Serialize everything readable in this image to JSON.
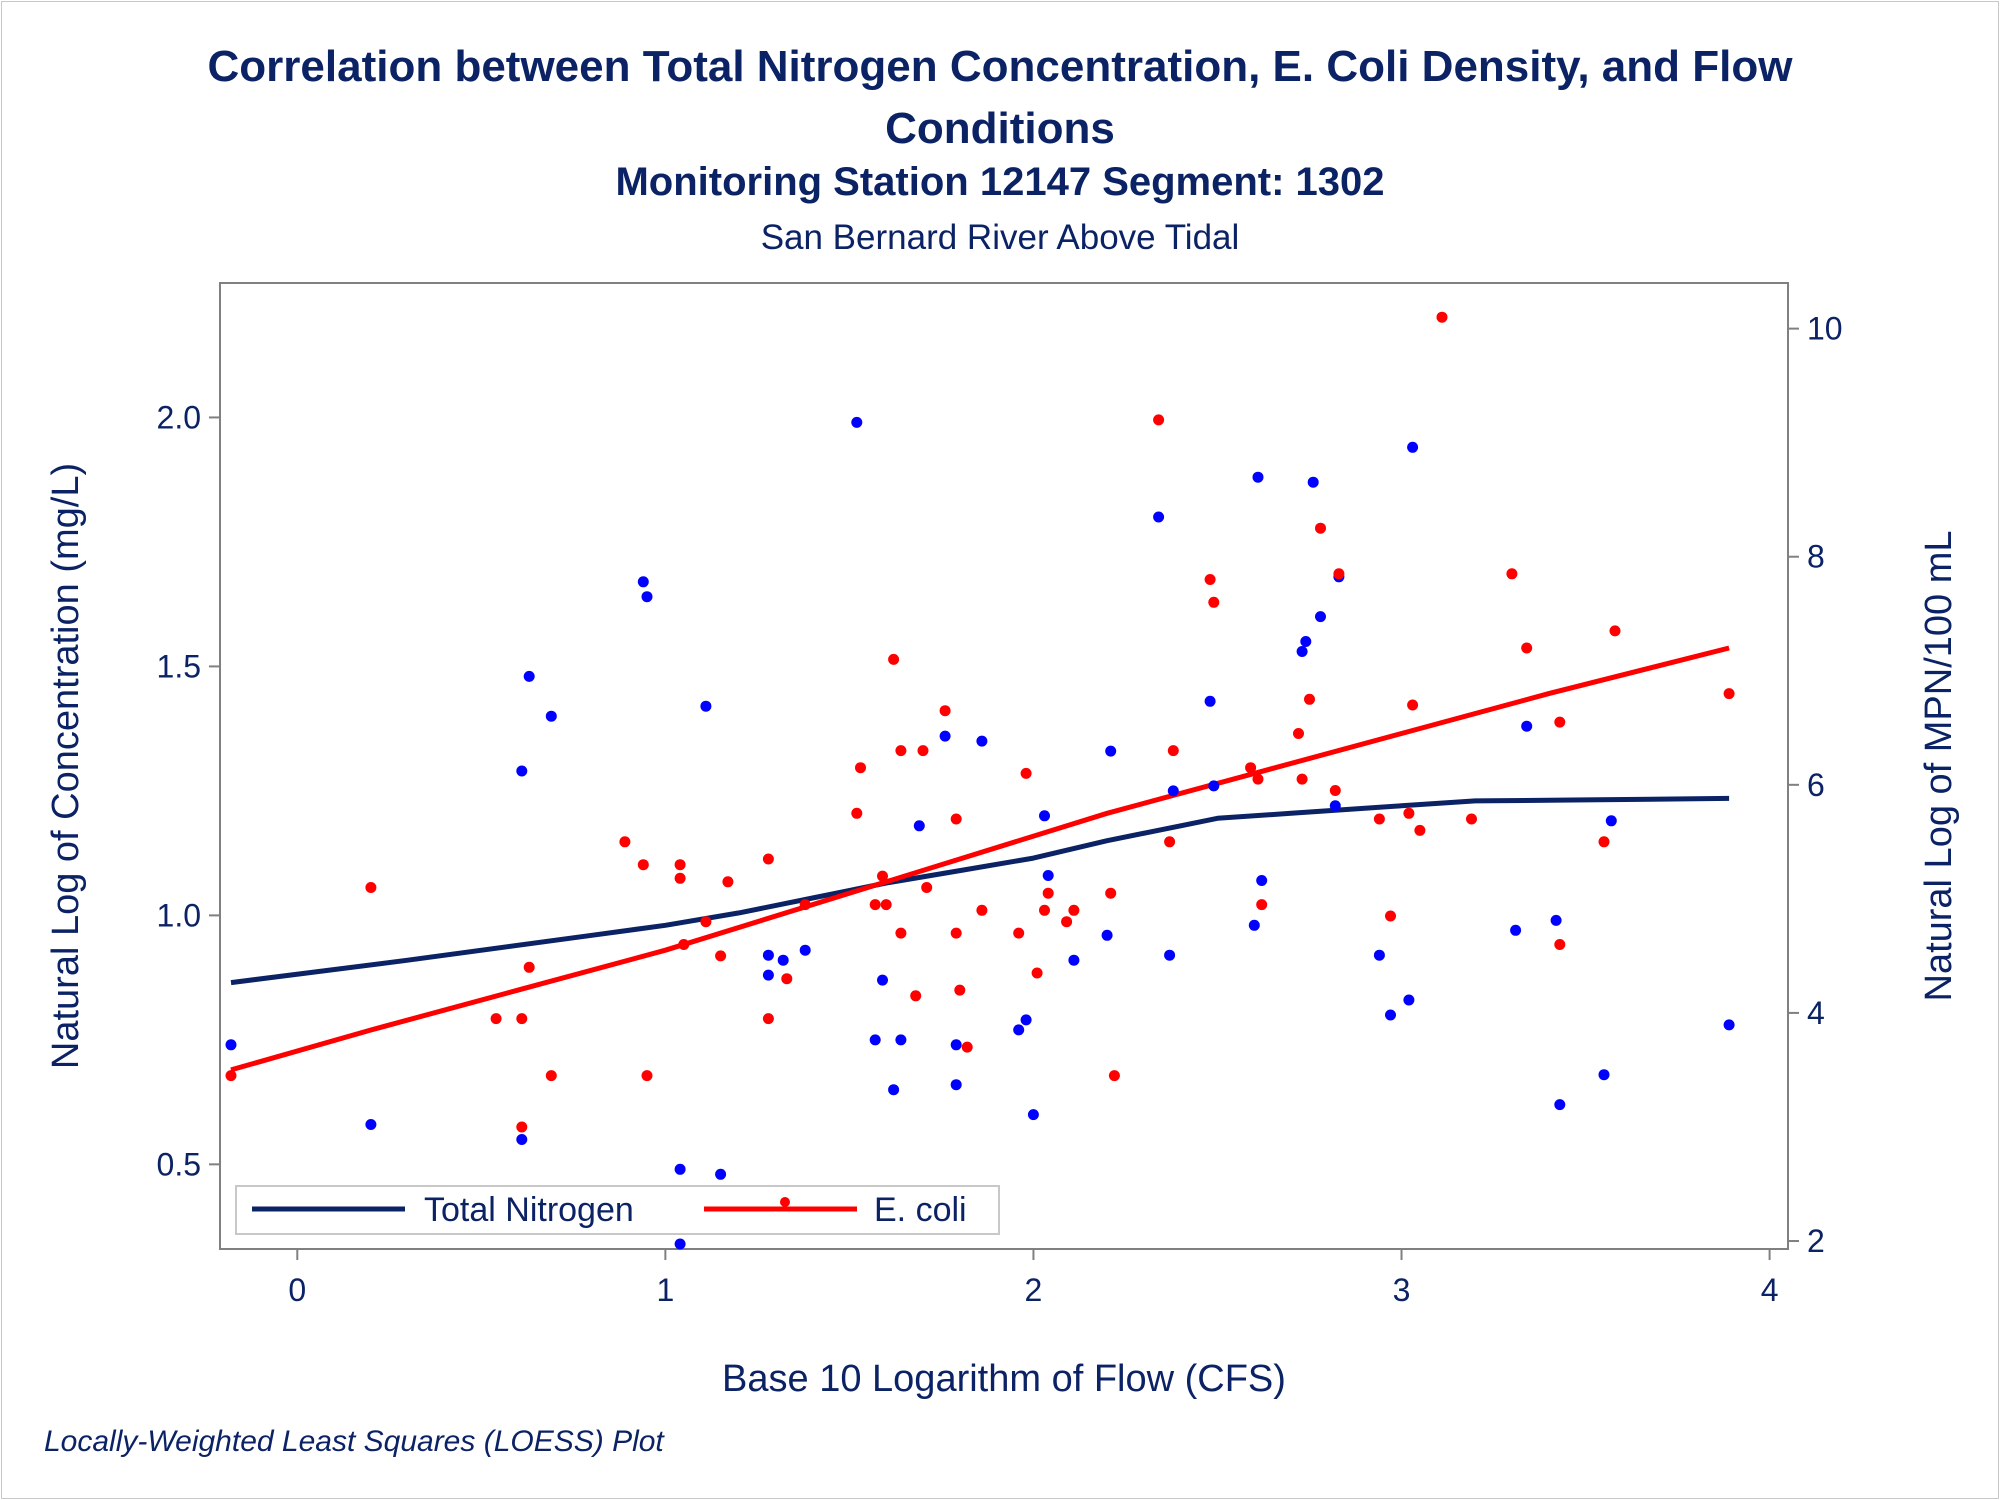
{
  "title_line1": "Correlation between Total Nitrogen Concentration, E. Coli Density, and Flow",
  "title_line2": "Conditions",
  "subtitle": "Monitoring Station 12147 Segment: 1302",
  "subtitle2": "San Bernard River Above Tidal",
  "footnote": "Locally-Weighted Least Squares (LOESS) Plot",
  "colors": {
    "nitrogen": "#0000ff",
    "nitrogen_line": "#0b2265",
    "ecoli": "#ff0000",
    "text": "#0b2265",
    "axis": "#808080"
  },
  "chart_data": {
    "type": "scatter",
    "xlabel": "Base 10 Logarithm of Flow (CFS)",
    "ylabel_left": "Natural Log of Concentration (mg/L)",
    "ylabel_right": "Natural Log of MPN/100 mL",
    "xlim": [
      -0.21,
      4.05
    ],
    "ylim_left": [
      0.33,
      2.27
    ],
    "ylim_right": [
      1.93,
      10.4
    ],
    "xticks": [
      0,
      1,
      2,
      3,
      4
    ],
    "yticks_left": [
      0.5,
      1.0,
      1.5,
      2.0
    ],
    "yticks_left_labels": [
      "0.5",
      "1.0",
      "1.5",
      "2.0"
    ],
    "yticks_right": [
      2,
      4,
      6,
      8,
      10
    ],
    "legend": {
      "position": "bottom-left",
      "entries": [
        "Total Nitrogen",
        "E. coli"
      ]
    },
    "series": [
      {
        "name": "Total Nitrogen",
        "axis": "left",
        "type": "scatter",
        "points": [
          [
            -0.18,
            0.74
          ],
          [
            0.2,
            0.58
          ],
          [
            0.61,
            1.29
          ],
          [
            0.61,
            0.55
          ],
          [
            0.63,
            1.48
          ],
          [
            0.69,
            1.4
          ],
          [
            0.94,
            1.67
          ],
          [
            0.95,
            1.64
          ],
          [
            1.04,
            0.49
          ],
          [
            1.04,
            0.34
          ],
          [
            1.11,
            1.42
          ],
          [
            1.15,
            0.48
          ],
          [
            1.28,
            0.92
          ],
          [
            1.28,
            0.88
          ],
          [
            1.32,
            0.91
          ],
          [
            1.38,
            0.93
          ],
          [
            1.52,
            1.99
          ],
          [
            1.57,
            0.75
          ],
          [
            1.59,
            0.87
          ],
          [
            1.62,
            0.65
          ],
          [
            1.64,
            0.75
          ],
          [
            1.69,
            1.18
          ],
          [
            1.76,
            1.36
          ],
          [
            1.79,
            0.66
          ],
          [
            1.79,
            0.74
          ],
          [
            1.86,
            1.35
          ],
          [
            1.96,
            0.77
          ],
          [
            1.98,
            0.79
          ],
          [
            2.0,
            0.6
          ],
          [
            2.03,
            1.2
          ],
          [
            2.04,
            1.08
          ],
          [
            2.11,
            0.91
          ],
          [
            2.2,
            0.96
          ],
          [
            2.21,
            1.33
          ],
          [
            2.34,
            1.8
          ],
          [
            2.37,
            0.92
          ],
          [
            2.38,
            1.25
          ],
          [
            2.48,
            1.43
          ],
          [
            2.49,
            1.26
          ],
          [
            2.6,
            0.98
          ],
          [
            2.61,
            1.88
          ],
          [
            2.62,
            1.07
          ],
          [
            2.73,
            1.53
          ],
          [
            2.74,
            1.55
          ],
          [
            2.76,
            1.87
          ],
          [
            2.78,
            1.6
          ],
          [
            2.82,
            1.22
          ],
          [
            2.83,
            1.68
          ],
          [
            2.94,
            0.92
          ],
          [
            2.97,
            0.8
          ],
          [
            3.02,
            0.83
          ],
          [
            3.03,
            1.94
          ],
          [
            3.31,
            0.97
          ],
          [
            3.34,
            1.38
          ],
          [
            3.42,
            0.99
          ],
          [
            3.43,
            0.62
          ],
          [
            3.55,
            0.68
          ],
          [
            3.57,
            1.19
          ],
          [
            3.89,
            0.78
          ]
        ]
      },
      {
        "name": "E. coli",
        "axis": "right",
        "type": "scatter",
        "points": [
          [
            -0.18,
            3.45
          ],
          [
            0.2,
            5.1
          ],
          [
            0.61,
            3.0
          ],
          [
            0.61,
            3.95
          ],
          [
            0.63,
            4.4
          ],
          [
            0.69,
            3.45
          ],
          [
            0.54,
            3.95
          ],
          [
            0.89,
            5.5
          ],
          [
            0.94,
            5.3
          ],
          [
            0.95,
            3.45
          ],
          [
            1.04,
            5.3
          ],
          [
            1.04,
            5.18
          ],
          [
            1.05,
            4.6
          ],
          [
            1.11,
            4.8
          ],
          [
            1.15,
            4.5
          ],
          [
            1.17,
            5.15
          ],
          [
            1.28,
            5.35
          ],
          [
            1.28,
            3.95
          ],
          [
            1.33,
            4.3
          ],
          [
            1.38,
            4.95
          ],
          [
            1.52,
            5.75
          ],
          [
            1.53,
            6.15
          ],
          [
            1.57,
            4.95
          ],
          [
            1.59,
            5.2
          ],
          [
            1.6,
            4.95
          ],
          [
            1.62,
            7.1
          ],
          [
            1.64,
            6.3
          ],
          [
            1.64,
            4.7
          ],
          [
            1.68,
            4.15
          ],
          [
            1.7,
            6.3
          ],
          [
            1.71,
            5.1
          ],
          [
            1.76,
            6.65
          ],
          [
            1.79,
            5.7
          ],
          [
            1.79,
            4.7
          ],
          [
            1.8,
            4.2
          ],
          [
            1.82,
            3.7
          ],
          [
            1.86,
            4.9
          ],
          [
            1.96,
            4.7
          ],
          [
            1.98,
            6.1
          ],
          [
            2.01,
            4.35
          ],
          [
            2.03,
            4.9
          ],
          [
            2.04,
            5.05
          ],
          [
            2.09,
            4.8
          ],
          [
            2.11,
            4.9
          ],
          [
            2.21,
            5.05
          ],
          [
            2.22,
            3.45
          ],
          [
            2.34,
            9.2
          ],
          [
            2.38,
            6.3
          ],
          [
            2.37,
            5.5
          ],
          [
            2.48,
            7.8
          ],
          [
            2.49,
            7.6
          ],
          [
            2.59,
            6.15
          ],
          [
            2.61,
            6.05
          ],
          [
            2.62,
            4.95
          ],
          [
            2.72,
            6.45
          ],
          [
            2.73,
            6.05
          ],
          [
            2.75,
            6.75
          ],
          [
            2.78,
            8.25
          ],
          [
            2.82,
            5.95
          ],
          [
            2.83,
            7.85
          ],
          [
            2.94,
            5.7
          ],
          [
            2.97,
            4.85
          ],
          [
            3.02,
            5.75
          ],
          [
            3.03,
            6.7
          ],
          [
            3.05,
            5.6
          ],
          [
            3.11,
            10.1
          ],
          [
            3.19,
            5.7
          ],
          [
            3.3,
            7.85
          ],
          [
            3.34,
            7.2
          ],
          [
            3.43,
            6.55
          ],
          [
            3.43,
            4.6
          ],
          [
            3.55,
            5.5
          ],
          [
            3.58,
            7.35
          ],
          [
            3.89,
            6.8
          ]
        ]
      },
      {
        "name": "Total Nitrogen",
        "axis": "left",
        "type": "line",
        "points": [
          [
            -0.18,
            0.865
          ],
          [
            0.3,
            0.91
          ],
          [
            0.8,
            0.96
          ],
          [
            1.0,
            0.98
          ],
          [
            1.2,
            1.005
          ],
          [
            1.4,
            1.035
          ],
          [
            1.6,
            1.065
          ],
          [
            1.8,
            1.09
          ],
          [
            2.0,
            1.115
          ],
          [
            2.2,
            1.15
          ],
          [
            2.4,
            1.18
          ],
          [
            2.5,
            1.195
          ],
          [
            2.7,
            1.205
          ],
          [
            3.0,
            1.22
          ],
          [
            3.2,
            1.23
          ],
          [
            3.5,
            1.232
          ],
          [
            3.89,
            1.235
          ]
        ]
      },
      {
        "name": "E. coli",
        "axis": "right",
        "type": "line",
        "points": [
          [
            -0.18,
            3.5
          ],
          [
            0.2,
            3.85
          ],
          [
            0.6,
            4.2
          ],
          [
            1.0,
            4.55
          ],
          [
            1.4,
            4.95
          ],
          [
            1.8,
            5.35
          ],
          [
            2.2,
            5.75
          ],
          [
            2.6,
            6.1
          ],
          [
            3.0,
            6.45
          ],
          [
            3.4,
            6.8
          ],
          [
            3.89,
            7.2
          ]
        ]
      }
    ]
  }
}
